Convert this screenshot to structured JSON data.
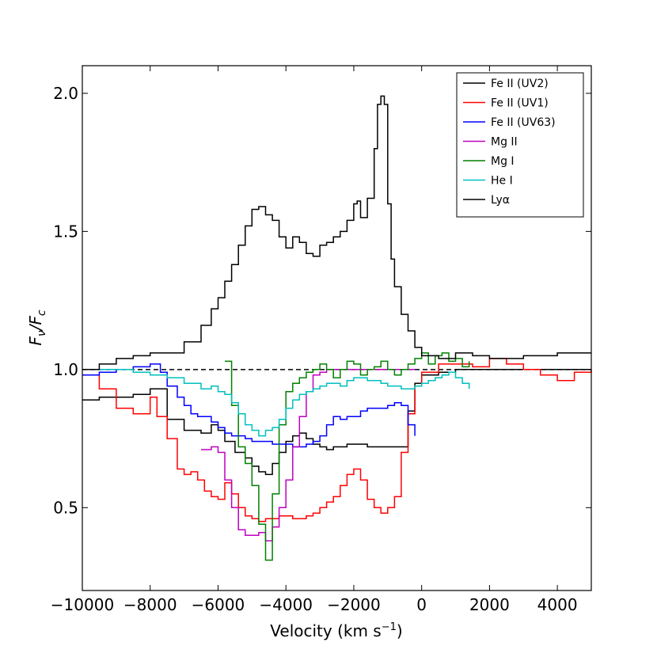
{
  "chart_data": {
    "type": "line",
    "step": true,
    "xlabel": "Velocity (km s",
    "xlabel_sup": "−1",
    "xlabel_close": ")",
    "ylabel": "F",
    "ylabel_sub_num": "ν",
    "ylabel_slash": "/F",
    "ylabel_sub_den": "c",
    "xlim": [
      -10000,
      5000
    ],
    "ylim": [
      0.2,
      2.1
    ],
    "xticks": [
      -10000,
      -8000,
      -6000,
      -4000,
      -2000,
      0,
      2000,
      4000
    ],
    "xtick_labels": [
      "−10000",
      "−8000",
      "−6000",
      "−4000",
      "−2000",
      "0",
      "2000",
      "4000"
    ],
    "yticks": [
      0.5,
      1.0,
      1.5,
      2.0
    ],
    "ytick_labels": [
      "0.5",
      "1.0",
      "1.5",
      "2.0"
    ],
    "reference_line": {
      "y": 1.0,
      "style": "dashed",
      "color": "#000000"
    },
    "legend_position": "upper-right",
    "series": [
      {
        "name": "Fe II (UV2)",
        "color": "#000000",
        "x": [
          -10000,
          -9500,
          -9000,
          -8500,
          -8000,
          -7500,
          -7000,
          -6500,
          -6200,
          -6000,
          -5800,
          -5500,
          -5200,
          -5000,
          -4800,
          -4600,
          -4400,
          -4200,
          -4000,
          -3800,
          -3600,
          -3400,
          -3200,
          -3000,
          -2800,
          -2600,
          -2400,
          -2200,
          -2000,
          -1800,
          -1600,
          -1400,
          -1200,
          -1000,
          -800,
          -600,
          -400,
          -200,
          0,
          500,
          1000,
          1500,
          2000,
          2500,
          3000,
          3500,
          4000,
          4500,
          5000
        ],
        "y": [
          0.89,
          0.9,
          0.9,
          0.91,
          0.93,
          0.82,
          0.78,
          0.77,
          0.8,
          0.78,
          0.74,
          0.7,
          0.68,
          0.65,
          0.63,
          0.62,
          0.66,
          0.7,
          0.74,
          0.76,
          0.77,
          0.75,
          0.73,
          0.72,
          0.71,
          0.72,
          0.72,
          0.73,
          0.73,
          0.73,
          0.72,
          0.72,
          0.72,
          0.72,
          0.72,
          0.72,
          0.85,
          0.95,
          0.98,
          0.99,
          1.0,
          1.0,
          1.0,
          1.0,
          1.0,
          1.0,
          1.0,
          1.0,
          1.0
        ]
      },
      {
        "name": "Fe II (UV1)",
        "color": "#ff0000",
        "x": [
          -10000,
          -9500,
          -9000,
          -8500,
          -8000,
          -7800,
          -7500,
          -7200,
          -7000,
          -6800,
          -6600,
          -6400,
          -6200,
          -6000,
          -5800,
          -5600,
          -5400,
          -5200,
          -5000,
          -4800,
          -4600,
          -4400,
          -4200,
          -4000,
          -3800,
          -3600,
          -3400,
          -3200,
          -3000,
          -2800,
          -2600,
          -2400,
          -2200,
          -2000,
          -1800,
          -1600,
          -1400,
          -1200,
          -1000,
          -800,
          -600,
          -400,
          -200,
          0,
          500,
          1000,
          1500,
          2000,
          2500,
          3000,
          3500,
          4000,
          4500,
          5000
        ],
        "y": [
          0.98,
          0.93,
          0.86,
          0.84,
          0.9,
          0.83,
          0.75,
          0.64,
          0.62,
          0.63,
          0.6,
          0.56,
          0.54,
          0.53,
          0.59,
          0.55,
          0.5,
          0.47,
          0.46,
          0.45,
          0.46,
          0.46,
          0.47,
          0.47,
          0.46,
          0.46,
          0.47,
          0.48,
          0.5,
          0.52,
          0.54,
          0.58,
          0.62,
          0.64,
          0.6,
          0.53,
          0.5,
          0.48,
          0.5,
          0.54,
          0.7,
          0.84,
          0.94,
          0.99,
          1.02,
          1.02,
          1.01,
          1.04,
          1.02,
          1.0,
          0.98,
          0.96,
          0.99,
          1.0
        ]
      },
      {
        "name": "Fe II (UV63)",
        "color": "#0000ff",
        "x": [
          -10000,
          -9500,
          -9000,
          -8500,
          -8000,
          -7700,
          -7500,
          -7200,
          -7000,
          -6800,
          -6600,
          -6400,
          -6200,
          -6000,
          -5800,
          -5600,
          -5400,
          -5200,
          -5000,
          -4800,
          -4600,
          -4400,
          -4200,
          -4000,
          -3800,
          -3600,
          -3400,
          -3200,
          -3000,
          -2800,
          -2600,
          -2400,
          -2200,
          -2000,
          -1800,
          -1600,
          -1400,
          -1200,
          -1000,
          -800,
          -600,
          -400,
          -200
        ],
        "y": [
          0.98,
          0.99,
          1.0,
          1.01,
          1.02,
          0.99,
          0.94,
          0.9,
          0.87,
          0.84,
          0.83,
          0.83,
          0.81,
          0.79,
          0.77,
          0.76,
          0.76,
          0.75,
          0.74,
          0.74,
          0.74,
          0.73,
          0.73,
          0.73,
          0.72,
          0.72,
          0.73,
          0.74,
          0.76,
          0.8,
          0.83,
          0.82,
          0.83,
          0.83,
          0.85,
          0.86,
          0.86,
          0.86,
          0.87,
          0.88,
          0.87,
          0.8,
          0.76
        ]
      },
      {
        "name": "Mg II",
        "color": "#bf00bf",
        "x": [
          -6500,
          -6200,
          -6000,
          -5800,
          -5600,
          -5400,
          -5200,
          -5000,
          -4800,
          -4600,
          -4400,
          -4200,
          -4000,
          -3800,
          -3600,
          -3400,
          -3200,
          -3000,
          -2800,
          -2600,
          -2400,
          -2200,
          -2000,
          -1800,
          -1600,
          -1400,
          -1200,
          -1000,
          -800,
          -600,
          -400,
          -200
        ],
        "y": [
          0.71,
          0.72,
          0.7,
          0.6,
          0.5,
          0.42,
          0.4,
          0.4,
          0.41,
          0.38,
          0.43,
          0.5,
          0.6,
          0.72,
          0.83,
          0.92,
          0.98,
          0.99,
          1.0,
          1.0,
          1.0,
          1.0,
          1.0,
          1.0,
          1.0,
          1.0,
          1.0,
          1.0,
          1.0,
          1.0,
          1.0,
          1.0
        ]
      },
      {
        "name": "Mg I",
        "color": "#008000",
        "x": [
          -5800,
          -5600,
          -5400,
          -5200,
          -5000,
          -4800,
          -4600,
          -4400,
          -4200,
          -4000,
          -3800,
          -3600,
          -3400,
          -3200,
          -3000,
          -2800,
          -2600,
          -2400,
          -2200,
          -2000,
          -1800,
          -1600,
          -1400,
          -1200,
          -1000,
          -800,
          -600,
          -400,
          -200,
          0,
          200,
          400,
          600,
          800,
          1000,
          1200,
          1400
        ],
        "y": [
          1.03,
          0.87,
          0.72,
          0.66,
          0.58,
          0.44,
          0.31,
          0.55,
          0.8,
          0.92,
          0.95,
          0.97,
          0.99,
          1.0,
          1.02,
          1.0,
          0.97,
          1.0,
          1.03,
          1.02,
          0.98,
          1.0,
          1.01,
          1.03,
          1.0,
          0.98,
          1.0,
          1.02,
          1.04,
          1.06,
          1.02,
          1.05,
          1.06,
          1.03,
          1.04,
          1.01,
          1.03
        ]
      },
      {
        "name": "He I",
        "color": "#00bfbf",
        "x": [
          -10000,
          -9500,
          -9000,
          -8500,
          -8000,
          -7500,
          -7000,
          -6500,
          -6200,
          -6000,
          -5800,
          -5600,
          -5400,
          -5200,
          -5000,
          -4800,
          -4600,
          -4400,
          -4200,
          -4000,
          -3800,
          -3600,
          -3400,
          -3200,
          -3000,
          -2800,
          -2600,
          -2400,
          -2200,
          -2000,
          -1800,
          -1600,
          -1400,
          -1200,
          -1000,
          -800,
          -600,
          -400,
          -200,
          0,
          200,
          400,
          600,
          800,
          1000,
          1200,
          1400
        ],
        "y": [
          1.0,
          1.0,
          1.0,
          0.99,
          0.98,
          0.97,
          0.95,
          0.93,
          0.94,
          0.92,
          0.91,
          0.88,
          0.84,
          0.8,
          0.78,
          0.76,
          0.78,
          0.79,
          0.82,
          0.86,
          0.89,
          0.91,
          0.92,
          0.93,
          0.94,
          0.95,
          0.95,
          0.94,
          0.96,
          0.97,
          0.97,
          0.96,
          0.96,
          0.95,
          0.94,
          0.94,
          0.93,
          0.93,
          0.94,
          0.95,
          0.96,
          0.97,
          0.98,
          0.99,
          0.97,
          0.95,
          0.93
        ]
      },
      {
        "name": "Lyα",
        "color": "#000000",
        "x": [
          -10000,
          -9500,
          -9000,
          -8500,
          -8000,
          -7500,
          -7000,
          -6500,
          -6200,
          -6000,
          -5800,
          -5600,
          -5400,
          -5200,
          -5000,
          -4800,
          -4600,
          -4400,
          -4200,
          -4000,
          -3800,
          -3600,
          -3400,
          -3200,
          -3000,
          -2800,
          -2600,
          -2400,
          -2200,
          -2000,
          -1900,
          -1800,
          -1600,
          -1400,
          -1300,
          -1200,
          -1100,
          -1000,
          -900,
          -800,
          -600,
          -400,
          -200,
          0,
          500,
          1000,
          1500,
          2000,
          2500,
          3000,
          3500,
          4000,
          4500,
          5000
        ],
        "y": [
          1.0,
          1.02,
          1.04,
          1.05,
          1.06,
          1.06,
          1.1,
          1.16,
          1.22,
          1.26,
          1.32,
          1.38,
          1.45,
          1.52,
          1.58,
          1.59,
          1.56,
          1.54,
          1.48,
          1.44,
          1.48,
          1.46,
          1.42,
          1.41,
          1.45,
          1.46,
          1.48,
          1.5,
          1.54,
          1.6,
          1.61,
          1.55,
          1.62,
          1.8,
          1.96,
          1.99,
          1.96,
          1.6,
          1.4,
          1.3,
          1.2,
          1.14,
          1.08,
          1.05,
          1.04,
          1.06,
          1.05,
          1.04,
          1.04,
          1.05,
          1.05,
          1.06,
          1.06,
          1.06
        ]
      }
    ]
  }
}
